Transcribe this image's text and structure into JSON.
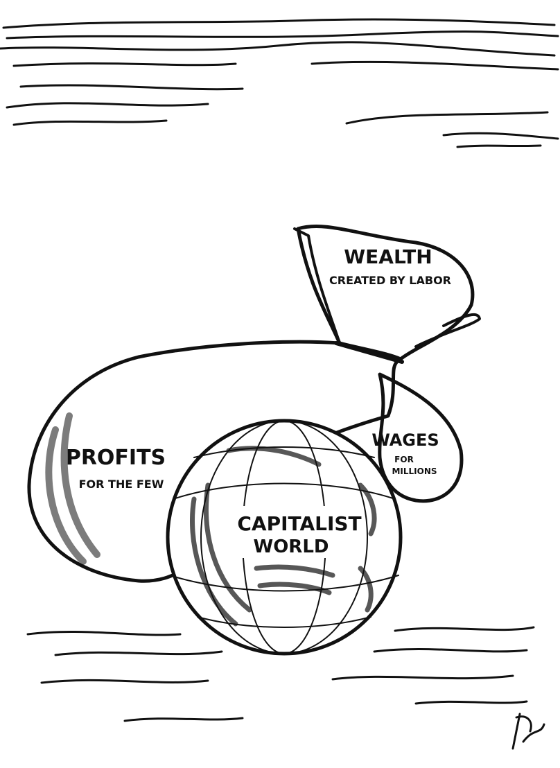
{
  "wealth": {
    "title": "WEALTH",
    "subtitle": "CREATED BY LABOR"
  },
  "profits": {
    "title": "PROFITS",
    "subtitle": "FOR THE FEW"
  },
  "wages": {
    "title": "WAGES",
    "line1": "FOR",
    "line2": "MILLIONS"
  },
  "globe": {
    "line1": "CAPITALIST",
    "line2": "WORLD"
  }
}
